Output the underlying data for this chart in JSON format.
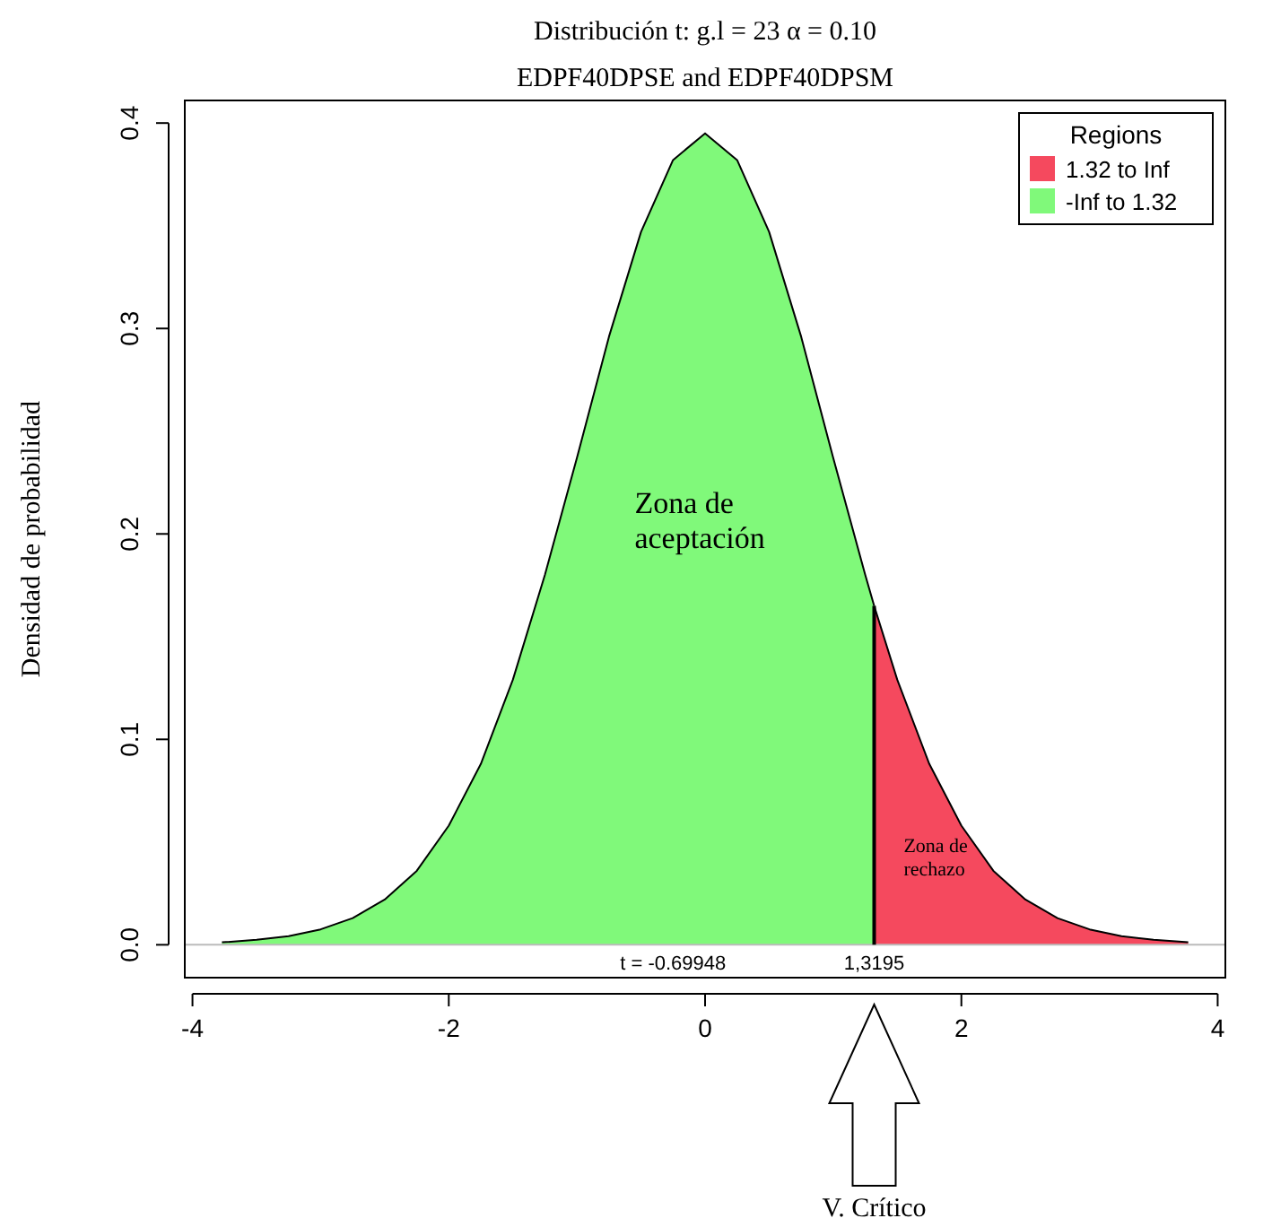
{
  "chart_data": {
    "type": "area",
    "title": "Distribución t:   g.l = 23   α = 0.10",
    "subtitle": "EDPF40DPSE and EDPF40DPSM",
    "ylabel": "Densidad de probabilidad",
    "legend_title": "Regions",
    "legend": "top right",
    "grid": false,
    "xlim": [
      -4.06,
      4.06
    ],
    "ylim": [
      -0.016,
      0.411
    ],
    "xticks": [
      -4,
      -2,
      0,
      2,
      4
    ],
    "yticks": [
      {
        "value": 0,
        "label": "0.0"
      },
      {
        "value": 0.1,
        "label": "0.1"
      },
      {
        "value": 0.2,
        "label": "0.2"
      },
      {
        "value": 0.3,
        "label": "0.3"
      },
      {
        "value": 0.4,
        "label": "0.4"
      }
    ],
    "series": [
      {
        "name": "1.32 to Inf",
        "color": "#f5495e",
        "x": [
          1.3195,
          1.5,
          1.75,
          2,
          2.25,
          2.5,
          2.75,
          3,
          3.25,
          3.5,
          3.77
        ],
        "values": [
          0.165,
          0.129,
          0.088,
          0.058,
          0.036,
          0.022,
          0.013,
          0.0075,
          0.0042,
          0.0024,
          0.0012
        ]
      },
      {
        "name": "-Inf to 1.32",
        "color": "#80f97a",
        "x": [
          -3.77,
          -3.5,
          -3.25,
          -3,
          -2.75,
          -2.5,
          -2.25,
          -2,
          -1.75,
          -1.5,
          -1.25,
          -1,
          -0.75,
          -0.5,
          -0.25,
          0,
          0.25,
          0.5,
          0.75,
          1,
          1.25,
          1.3195
        ],
        "values": [
          0.0012,
          0.0024,
          0.0042,
          0.0075,
          0.013,
          0.022,
          0.036,
          0.058,
          0.088,
          0.129,
          0.18,
          0.237,
          0.296,
          0.347,
          0.382,
          0.395,
          0.382,
          0.347,
          0.296,
          0.237,
          0.18,
          0.165
        ]
      }
    ],
    "ref_lines": [
      {
        "axis": "y",
        "value": 0,
        "color": "#bbbbbb"
      },
      {
        "axis": "x",
        "value": 1.3195,
        "label": "1,3195",
        "color": "#000000"
      }
    ],
    "annotations": [
      "Zona de aceptación",
      "Zona de rechazo",
      "t = -0.69948",
      "V. Crítico"
    ]
  }
}
